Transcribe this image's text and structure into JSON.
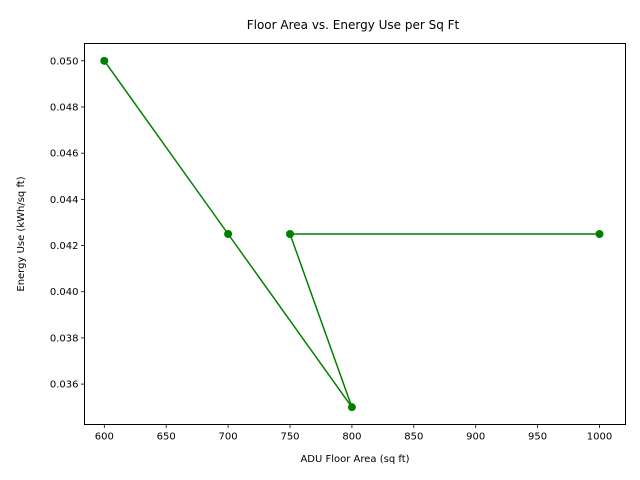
{
  "chart_data": {
    "type": "line",
    "title": "Floor Area vs. Energy Use per Sq Ft",
    "xlabel": "ADU Floor Area (sq ft)",
    "ylabel": "Energy Use (kWh/sq ft)",
    "xlim": [
      584,
      1021
    ],
    "ylim": [
      0.03425,
      0.05075
    ],
    "x_ticks": [
      600,
      650,
      700,
      750,
      800,
      850,
      900,
      950,
      1000
    ],
    "y_ticks": [
      0.036,
      0.038,
      0.04,
      0.042,
      0.044,
      0.046,
      0.048,
      0.05
    ],
    "y_tick_labels": [
      "0.036",
      "0.038",
      "0.040",
      "0.042",
      "0.044",
      "0.046",
      "0.048",
      "0.050"
    ],
    "grid": false,
    "legend": "none",
    "series": [
      {
        "color": "#008000",
        "marker": "circle",
        "points": [
          {
            "x": 600,
            "y": 0.05
          },
          {
            "x": 700,
            "y": 0.0425
          },
          {
            "x": 800,
            "y": 0.035
          },
          {
            "x": 750,
            "y": 0.0425
          },
          {
            "x": 1000,
            "y": 0.0425
          }
        ]
      }
    ]
  }
}
